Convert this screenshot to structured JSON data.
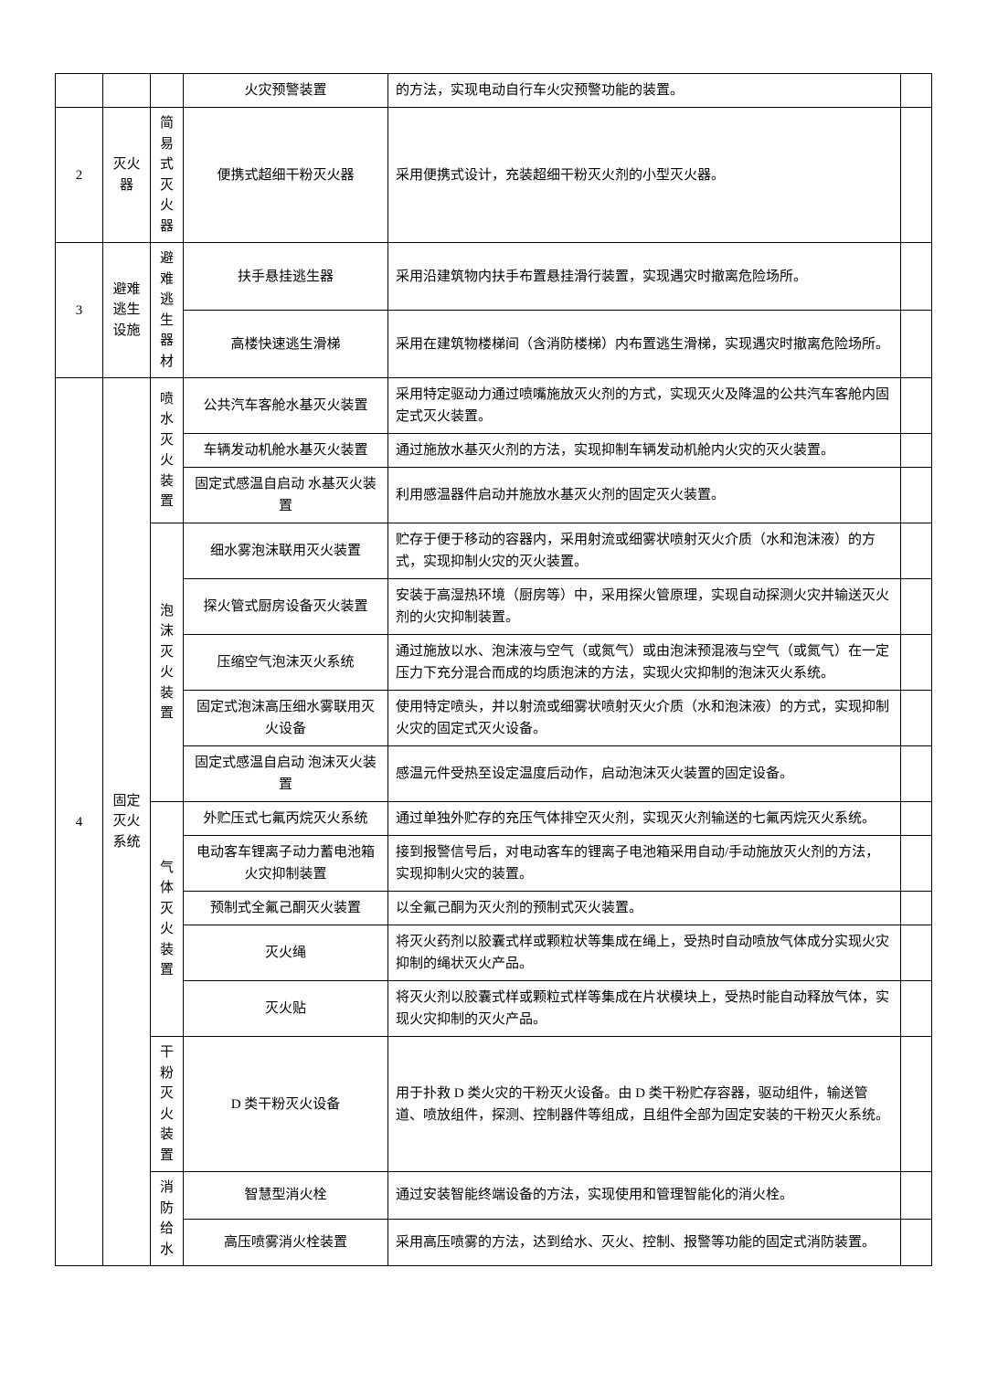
{
  "table": {
    "border_color": "#000000",
    "background_color": "#ffffff",
    "font_size": 15,
    "rows": [
      {
        "c3": "火灾预警装置",
        "c4": "的方法，实现电动自行车火灾预警功能的装置。"
      },
      {
        "c0": "2",
        "c1": "灭火器",
        "c2": "简易式灭火器",
        "c3": "便携式超细干粉灭火器",
        "c4": "采用便携式设计，充装超细干粉灭火剂的小型灭火器。"
      },
      {
        "c0": "3",
        "c1": "避难逃生设施",
        "c2": "避难逃生器材",
        "c3": "扶手悬挂逃生器",
        "c4": "采用沿建筑物内扶手布置悬挂滑行装置，实现遇灾时撤离危险场所。"
      },
      {
        "c3": "高楼快速逃生滑梯",
        "c4": "采用在建筑物楼梯间（含消防楼梯）内布置逃生滑梯，实现遇灾时撤离危险场所。"
      },
      {
        "c0": "4",
        "c1": "固定灭火系统",
        "c2": "喷水灭火装置",
        "c3": "公共汽车客舱水基灭火装置",
        "c4": "采用特定驱动力通过喷嘴施放灭火剂的方式，实现灭火及降温的公共汽车客舱内固定式灭火装置。"
      },
      {
        "c3": "车辆发动机舱水基灭火装置",
        "c4": "通过施放水基灭火剂的方法，实现抑制车辆发动机舱内火灾的灭火装置。"
      },
      {
        "c3": "固定式感温自启动\n水基灭火装置",
        "c4": "利用感温器件启动并施放水基灭火剂的固定灭火装置。"
      },
      {
        "c2": "泡沫灭火装置",
        "c3": "细水雾泡沫联用灭火装置",
        "c4": "贮存于便于移动的容器内，采用射流或细雾状喷射灭火介质（水和泡沫液）的方式，实现抑制火灾的灭火装置。"
      },
      {
        "c3": "探火管式厨房设备灭火装置",
        "c4": "安装于高湿热环境（厨房等）中，采用探火管原理，实现自动探测火灾并输送灭火剂的火灾抑制装置。"
      },
      {
        "c3": "压缩空气泡沫灭火系统",
        "c4": "通过施放以水、泡沫液与空气（或氮气）或由泡沫预混液与空气（或氮气）在一定压力下充分混合而成的均质泡沫的方法，实现火灾抑制的泡沫灭火系统。"
      },
      {
        "c3": "固定式泡沫高压细水雾联用灭火设备",
        "c4": "使用特定喷头，并以射流或细雾状喷射灭火介质（水和泡沫液）的方式，实现抑制火灾的固定式灭火设备。"
      },
      {
        "c3": "固定式感温自启动\n泡沫灭火装置",
        "c4": "感温元件受热至设定温度后动作，启动泡沫灭火装置的固定设备。"
      },
      {
        "c2": "气体灭火装置",
        "c3": "外贮压式七氟丙烷灭火系统",
        "c4": "通过单独外贮存的充压气体排空灭火剂，实现灭火剂输送的七氟丙烷灭火系统。"
      },
      {
        "c3": "电动客车锂离子动力蓄电池箱火灾抑制装置",
        "c4": "接到报警信号后，对电动客车的锂离子电池箱采用自动/手动施放灭火剂的方法，实现抑制火灾的装置。"
      },
      {
        "c3": "预制式全氟己酮灭火装置",
        "c4": "以全氟己酮为灭火剂的预制式灭火装置。"
      },
      {
        "c3": "灭火绳",
        "c4": "将灭火药剂以胶囊式样或颗粒状等集成在绳上，受热时自动喷放气体成分实现火灾抑制的绳状灭火产品。"
      },
      {
        "c3": "灭火贴",
        "c4": "将灭火剂以胶囊式样或颗粒式样等集成在片状模块上，受热时能自动释放气体，实现火灾抑制的灭火产品。"
      },
      {
        "c2": "干粉灭火装置",
        "c3": "D 类干粉灭火设备",
        "c4": "用于扑救 D 类火灾的干粉灭火设备。由 D 类干粉贮存容器，驱动组件，输送管道、喷放组件，探测、控制器件等组成，且组件全部为固定安装的干粉灭火系统。"
      },
      {
        "c2": "消防给水",
        "c3": "智慧型消火栓",
        "c4": "通过安装智能终端设备的方法，实现使用和管理智能化的消火栓。"
      },
      {
        "c3": "高压喷雾消火栓装置",
        "c4": "采用高压喷雾的方法，达到给水、灭火、控制、报警等功能的固定式消防装置。"
      }
    ]
  }
}
